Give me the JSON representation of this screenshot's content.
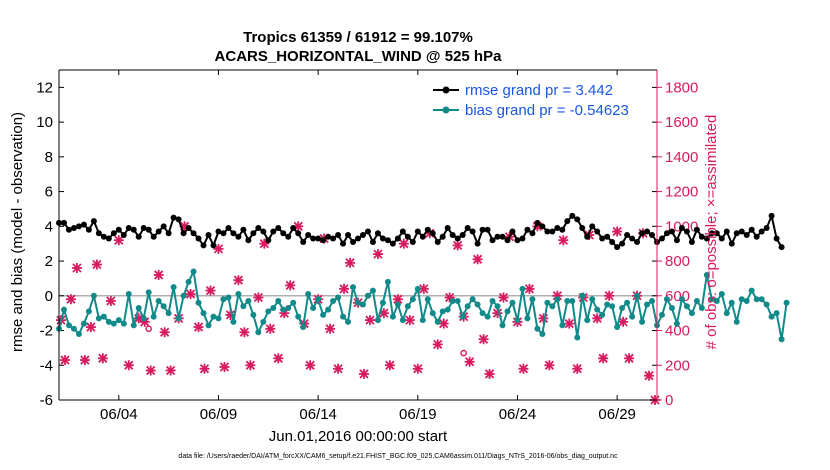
{
  "chart_data": {
    "type": "line",
    "title_line1": "Tropics 61359 / 61912 = 99.107%",
    "title_line2": "ACARS_HORIZONTAL_WIND @ 525 hPa",
    "xlabel": "Jun.01,2016 00:00:00 start",
    "ylabel_left": "rmse and bias (model - observation)",
    "ylabel_right": "# of obs: o=possible; ×=assimilated",
    "footnote": "data file: /Users/raeder/DAI/ATM_forcXX/CAM6_setup/f.e21.FHIST_BGC.f09_025.CAM6assim.011/Diags_NTrS_2016-06/obs_diag_output.nc",
    "x_tick_labels": [
      "06/04",
      "06/09",
      "06/14",
      "06/19",
      "06/24",
      "06/29"
    ],
    "x_tick_days": [
      4,
      9,
      14,
      19,
      24,
      29
    ],
    "xlim": [
      1.0,
      31.0
    ],
    "ylim_left": [
      -6,
      13
    ],
    "yticks_left": [
      "-6",
      "-4",
      "-2",
      "0",
      "2",
      "4",
      "6",
      "8",
      "10",
      "12"
    ],
    "ylim_right": [
      0,
      1900
    ],
    "yticks_right": [
      "0",
      "200",
      "400",
      "600",
      "800",
      "1000",
      "1200",
      "1400",
      "1600",
      "1800"
    ],
    "legend": [
      {
        "name": "rmse grand pr = 3.442",
        "color": "#000000"
      },
      {
        "name": "bias grand pr = -0.54623",
        "color": "#138a8a"
      }
    ],
    "series": [
      {
        "name": "rmse",
        "color": "#000000",
        "x_start": 1.0,
        "x_step": 0.25,
        "values": [
          4.2,
          4.2,
          3.8,
          3.9,
          4.0,
          4.1,
          3.8,
          4.3,
          3.6,
          3.4,
          3.3,
          3.6,
          3.8,
          3.5,
          3.9,
          3.8,
          3.4,
          3.9,
          3.8,
          3.4,
          3.7,
          4.0,
          3.6,
          4.5,
          4.4,
          3.6,
          3.9,
          3.6,
          3.3,
          2.9,
          3.5,
          2.9,
          3.7,
          3.6,
          3.9,
          3.6,
          3.4,
          3.8,
          3.2,
          3.6,
          3.9,
          3.7,
          3.2,
          3.7,
          3.9,
          3.6,
          3.4,
          3.9,
          3.6,
          3.1,
          3.5,
          3.3,
          3.3,
          3.2,
          3.4,
          3.3,
          3.5,
          3.0,
          3.5,
          3.1,
          3.3,
          3.5,
          3.7,
          3.1,
          3.6,
          3.3,
          3.2,
          3.0,
          3.3,
          3.7,
          3.4,
          3.1,
          3.7,
          3.4,
          3.8,
          3.6,
          3.1,
          3.4,
          3.9,
          3.5,
          3.3,
          3.5,
          3.9,
          3.7,
          3.0,
          3.8,
          3.8,
          3.2,
          3.4,
          3.4,
          3.2,
          3.7,
          3.2,
          3.3,
          3.8,
          3.6,
          4.2,
          4.0,
          3.7,
          3.7,
          3.9,
          3.8,
          4.3,
          4.6,
          4.4,
          3.9,
          3.4,
          4.0,
          3.7,
          3.3,
          3.4,
          3.1,
          2.8,
          3.0,
          3.5,
          3.3,
          3.1,
          3.6,
          3.7,
          3.5,
          3.1,
          3.3,
          3.6,
          3.7,
          3.2,
          3.9,
          3.7,
          3.1,
          3.8,
          3.4,
          3.3,
          3.6,
          3.6,
          3.3,
          3.7,
          3.0,
          3.6,
          3.7,
          3.5,
          3.8,
          3.4,
          3.7,
          3.9,
          4.6,
          3.3,
          2.8
        ]
      },
      {
        "name": "bias",
        "color": "#138a8a",
        "x_start": 1.0,
        "x_step": 0.25,
        "values": [
          -1.9,
          -0.8,
          -1.7,
          -1.9,
          -2.2,
          -1.6,
          -0.9,
          0.0,
          -1.3,
          -1.2,
          -1.5,
          -1.6,
          -1.4,
          -1.6,
          0.1,
          -1.7,
          -0.7,
          -1.3,
          0.2,
          -1.2,
          -0.3,
          -0.6,
          -1.0,
          0.5,
          -1.3,
          0.0,
          0.8,
          1.4,
          -0.4,
          -1.0,
          -1.7,
          -1.2,
          -1.3,
          -0.2,
          -0.1,
          -1.5,
          0.1,
          -0.6,
          -0.3,
          -1.1,
          -2.1,
          -1.5,
          -0.9,
          -0.7,
          -0.3,
          -0.8,
          -0.7,
          -0.4,
          -1.2,
          -1.8,
          0.1,
          -0.7,
          -0.2,
          -1.1,
          -0.8,
          -0.3,
          -0.1,
          -1.2,
          -1.5,
          0.5,
          -0.4,
          -0.5,
          0.0,
          0.3,
          -1.4,
          -0.4,
          0.8,
          -1.2,
          -0.5,
          -1.4,
          -0.6,
          -0.2,
          0.4,
          -1.4,
          -0.2,
          -1.0,
          -1.5,
          -0.9,
          -0.8,
          -0.3,
          -0.3,
          -1.2,
          -0.6,
          -0.2,
          -0.5,
          -1.0,
          -1.2,
          -0.3,
          -0.6,
          -1.7,
          -0.9,
          -0.4,
          -1.4,
          0.4,
          -1.3,
          -0.2,
          -1.9,
          -2.2,
          -0.4,
          -0.6,
          -0.2,
          -1.7,
          -0.3,
          -0.3,
          -2.4,
          0.0,
          -1.4,
          -0.2,
          -0.8,
          -1.1,
          -0.5,
          -0.6,
          -1.8,
          -0.7,
          -0.4,
          -1.2,
          0.0,
          -1.5,
          -0.5,
          -0.3,
          -1.7,
          -1.1,
          -0.2,
          -0.7,
          -1.6,
          -0.2,
          -0.6,
          -1.0,
          -0.3,
          -0.7,
          1.2,
          -0.2,
          -0.3,
          0.1,
          -1.0,
          -0.4,
          -1.5,
          -0.2,
          -0.3,
          0.3,
          -0.2,
          -0.2,
          -0.5,
          -1.2,
          -1.0,
          -2.5,
          -0.4
        ]
      }
    ],
    "obs_assimilated": {
      "name": "assimilated (×), right axis",
      "color": "#d81b60",
      "x": [
        1.1,
        1.3,
        1.6,
        1.9,
        2.3,
        2.6,
        2.9,
        3.2,
        3.6,
        4.0,
        4.5,
        5.0,
        5.3,
        5.6,
        6.0,
        6.3,
        6.6,
        7.0,
        7.3,
        7.6,
        8.0,
        8.3,
        8.6,
        9.0,
        9.3,
        9.6,
        10.0,
        10.3,
        10.6,
        11.0,
        11.3,
        11.6,
        12.0,
        12.3,
        12.6,
        13.0,
        13.3,
        13.6,
        14.0,
        14.3,
        14.6,
        15.0,
        15.3,
        15.6,
        16.0,
        16.3,
        16.6,
        17.0,
        17.3,
        17.6,
        18.0,
        18.3,
        18.6,
        19.0,
        19.3,
        19.6,
        20.0,
        20.3,
        20.6,
        21.0,
        21.3,
        21.6,
        22.0,
        22.3,
        22.6,
        23.0,
        23.3,
        23.6,
        24.0,
        24.3,
        24.6,
        25.0,
        25.3,
        25.6,
        26.0,
        26.3,
        26.6,
        27.0,
        27.3,
        27.6,
        28.0,
        28.3,
        28.6,
        29.0,
        29.3,
        29.6,
        30.0,
        30.3,
        30.6,
        30.9
      ],
      "y": [
        460,
        230,
        580,
        760,
        230,
        420,
        780,
        240,
        570,
        920,
        200,
        470,
        450,
        170,
        720,
        390,
        170,
        470,
        1000,
        610,
        420,
        180,
        630,
        870,
        190,
        490,
        690,
        390,
        200,
        590,
        900,
        410,
        240,
        500,
        660,
        1000,
        440,
        200,
        580,
        930,
        410,
        180,
        640,
        790,
        560,
        150,
        460,
        840,
        500,
        200,
        580,
        900,
        460,
        180,
        640,
        960,
        320,
        440,
        590,
        890,
        480,
        220,
        810,
        350,
        150,
        500,
        590,
        940,
        450,
        180,
        640,
        1000,
        470,
        200,
        600,
        920,
        440,
        180,
        590,
        950,
        470,
        240,
        600,
        970,
        450,
        240,
        600,
        960,
        140,
        0
      ]
    },
    "obs_possible": {
      "name": "possible (o), right axis",
      "color": "#d81b60",
      "x": [
        5.5,
        21.3
      ],
      "y": [
        410,
        270
      ]
    }
  }
}
